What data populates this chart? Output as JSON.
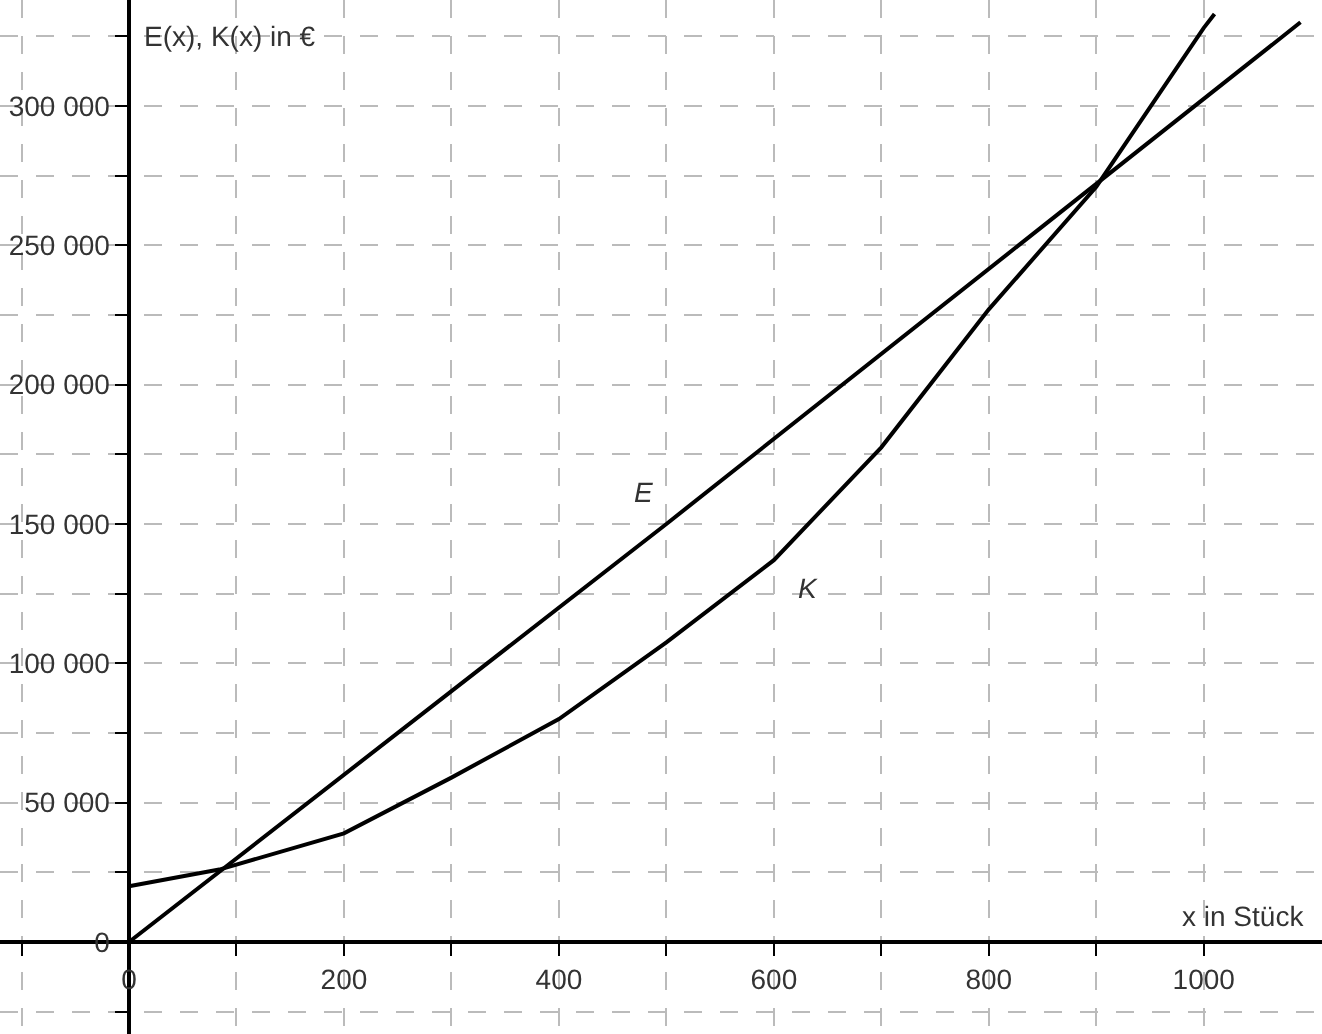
{
  "chart_data": {
    "type": "line",
    "xlabel": "x in Stück",
    "ylabel": "E(x), K(x) in €",
    "series": [
      {
        "name": "E",
        "color": "#000000",
        "x": [
          0,
          500,
          1090
        ],
        "values": [
          0,
          150000,
          330000
        ]
      },
      {
        "name": "K",
        "color": "#000000",
        "x": [
          0,
          84,
          200,
          300,
          400,
          500,
          600,
          700,
          800,
          900,
          1000,
          1010
        ],
        "values": [
          20000,
          26000,
          39000,
          59000,
          80000,
          107500,
          137000,
          177500,
          227000,
          271000,
          328000,
          333000
        ]
      }
    ],
    "xlim": [
      -120,
      1110
    ],
    "ylim": [
      -33000,
      338000
    ],
    "xticks": [
      {
        "value": -100,
        "label": null
      },
      0,
      {
        "value": 100,
        "label": null
      },
      200,
      {
        "value": 300,
        "label": null
      },
      400,
      {
        "value": 500,
        "label": null
      },
      600,
      {
        "value": 700,
        "label": null
      },
      800,
      {
        "value": 900,
        "label": null
      },
      1000
    ],
    "yticks": [
      {
        "value": -25000,
        "label": null
      },
      0,
      {
        "value": 25000,
        "label": null
      },
      {
        "value": 50000,
        "label": "50 000"
      },
      {
        "value": 75000,
        "label": null
      },
      {
        "value": 100000,
        "label": "100 000"
      },
      {
        "value": 125000,
        "label": null
      },
      {
        "value": 150000,
        "label": "150 000"
      },
      {
        "value": 175000,
        "label": null
      },
      {
        "value": 200000,
        "label": "200 000"
      },
      {
        "value": 225000,
        "label": null
      },
      {
        "value": 250000,
        "label": "250 000"
      },
      {
        "value": 275000,
        "label": null
      },
      {
        "value": 300000,
        "label": "300 000"
      },
      {
        "value": 325000,
        "label": null
      }
    ],
    "grid": true,
    "legend": false,
    "marker": "none",
    "line_style": "solid"
  }
}
